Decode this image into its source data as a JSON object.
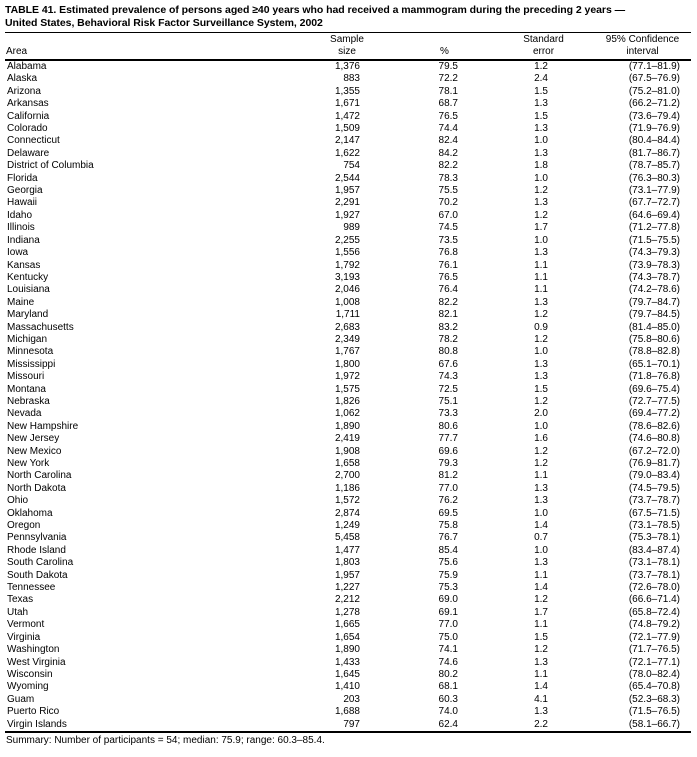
{
  "title": {
    "line1": "TABLE 41. Estimated prevalence of persons aged ≥40 years who had received a mammogram during the preceding 2 years —",
    "line2": "United States, Behavioral Risk Factor Surveillance System, 2002"
  },
  "columns": {
    "area": "Area",
    "sample_line1": "Sample",
    "sample_line2": "size",
    "percent": "%",
    "se_line1": "Standard",
    "se_line2": "error",
    "ci_line1": "95% Confidence",
    "ci_line2": "interval"
  },
  "rows": [
    {
      "area": "Alabama",
      "sample": "1,376",
      "percent": "79.5",
      "se": "1.2",
      "ci": "(77.1–81.9)"
    },
    {
      "area": "Alaska",
      "sample": "883",
      "percent": "72.2",
      "se": "2.4",
      "ci": "(67.5–76.9)"
    },
    {
      "area": "Arizona",
      "sample": "1,355",
      "percent": "78.1",
      "se": "1.5",
      "ci": "(75.2–81.0)"
    },
    {
      "area": "Arkansas",
      "sample": "1,671",
      "percent": "68.7",
      "se": "1.3",
      "ci": "(66.2–71.2)"
    },
    {
      "area": "California",
      "sample": "1,472",
      "percent": "76.5",
      "se": "1.5",
      "ci": "(73.6–79.4)"
    },
    {
      "area": "Colorado",
      "sample": "1,509",
      "percent": "74.4",
      "se": "1.3",
      "ci": "(71.9–76.9)"
    },
    {
      "area": "Connecticut",
      "sample": "2,147",
      "percent": "82.4",
      "se": "1.0",
      "ci": "(80.4–84.4)"
    },
    {
      "area": "Delaware",
      "sample": "1,622",
      "percent": "84.2",
      "se": "1.3",
      "ci": "(81.7–86.7)"
    },
    {
      "area": "District of Columbia",
      "sample": "754",
      "percent": "82.2",
      "se": "1.8",
      "ci": "(78.7–85.7)"
    },
    {
      "area": "Florida",
      "sample": "2,544",
      "percent": "78.3",
      "se": "1.0",
      "ci": "(76.3–80.3)"
    },
    {
      "area": "Georgia",
      "sample": "1,957",
      "percent": "75.5",
      "se": "1.2",
      "ci": "(73.1–77.9)"
    },
    {
      "area": "Hawaii",
      "sample": "2,291",
      "percent": "70.2",
      "se": "1.3",
      "ci": "(67.7–72.7)"
    },
    {
      "area": "Idaho",
      "sample": "1,927",
      "percent": "67.0",
      "se": "1.2",
      "ci": "(64.6–69.4)"
    },
    {
      "area": "Illinois",
      "sample": "989",
      "percent": "74.5",
      "se": "1.7",
      "ci": "(71.2–77.8)"
    },
    {
      "area": "Indiana",
      "sample": "2,255",
      "percent": "73.5",
      "se": "1.0",
      "ci": "(71.5–75.5)"
    },
    {
      "area": "Iowa",
      "sample": "1,556",
      "percent": "76.8",
      "se": "1.3",
      "ci": "(74.3–79.3)"
    },
    {
      "area": "Kansas",
      "sample": "1,792",
      "percent": "76.1",
      "se": "1.1",
      "ci": "(73.9–78.3)"
    },
    {
      "area": "Kentucky",
      "sample": "3,193",
      "percent": "76.5",
      "se": "1.1",
      "ci": "(74.3–78.7)"
    },
    {
      "area": "Louisiana",
      "sample": "2,046",
      "percent": "76.4",
      "se": "1.1",
      "ci": "(74.2–78.6)"
    },
    {
      "area": "Maine",
      "sample": "1,008",
      "percent": "82.2",
      "se": "1.3",
      "ci": "(79.7–84.7)"
    },
    {
      "area": "Maryland",
      "sample": "1,711",
      "percent": "82.1",
      "se": "1.2",
      "ci": "(79.7–84.5)"
    },
    {
      "area": "Massachusetts",
      "sample": "2,683",
      "percent": "83.2",
      "se": "0.9",
      "ci": "(81.4–85.0)"
    },
    {
      "area": "Michigan",
      "sample": "2,349",
      "percent": "78.2",
      "se": "1.2",
      "ci": "(75.8–80.6)"
    },
    {
      "area": "Minnesota",
      "sample": "1,767",
      "percent": "80.8",
      "se": "1.0",
      "ci": "(78.8–82.8)"
    },
    {
      "area": "Mississippi",
      "sample": "1,800",
      "percent": "67.6",
      "se": "1.3",
      "ci": "(65.1–70.1)"
    },
    {
      "area": "Missouri",
      "sample": "1,972",
      "percent": "74.3",
      "se": "1.3",
      "ci": "(71.8–76.8)"
    },
    {
      "area": "Montana",
      "sample": "1,575",
      "percent": "72.5",
      "se": "1.5",
      "ci": "(69.6–75.4)"
    },
    {
      "area": "Nebraska",
      "sample": "1,826",
      "percent": "75.1",
      "se": "1.2",
      "ci": "(72.7–77.5)"
    },
    {
      "area": "Nevada",
      "sample": "1,062",
      "percent": "73.3",
      "se": "2.0",
      "ci": "(69.4–77.2)"
    },
    {
      "area": "New Hampshire",
      "sample": "1,890",
      "percent": "80.6",
      "se": "1.0",
      "ci": "(78.6–82.6)"
    },
    {
      "area": "New Jersey",
      "sample": "2,419",
      "percent": "77.7",
      "se": "1.6",
      "ci": "(74.6–80.8)"
    },
    {
      "area": "New Mexico",
      "sample": "1,908",
      "percent": "69.6",
      "se": "1.2",
      "ci": "(67.2–72.0)"
    },
    {
      "area": "New York",
      "sample": "1,658",
      "percent": "79.3",
      "se": "1.2",
      "ci": "(76.9–81.7)"
    },
    {
      "area": "North Carolina",
      "sample": "2,700",
      "percent": "81.2",
      "se": "1.1",
      "ci": "(79.0–83.4)"
    },
    {
      "area": "North Dakota",
      "sample": "1,186",
      "percent": "77.0",
      "se": "1.3",
      "ci": "(74.5–79.5)"
    },
    {
      "area": "Ohio",
      "sample": "1,572",
      "percent": "76.2",
      "se": "1.3",
      "ci": "(73.7–78.7)"
    },
    {
      "area": "Oklahoma",
      "sample": "2,874",
      "percent": "69.5",
      "se": "1.0",
      "ci": "(67.5–71.5)"
    },
    {
      "area": "Oregon",
      "sample": "1,249",
      "percent": "75.8",
      "se": "1.4",
      "ci": "(73.1–78.5)"
    },
    {
      "area": "Pennsylvania",
      "sample": "5,458",
      "percent": "76.7",
      "se": "0.7",
      "ci": "(75.3–78.1)"
    },
    {
      "area": "Rhode Island",
      "sample": "1,477",
      "percent": "85.4",
      "se": "1.0",
      "ci": "(83.4–87.4)"
    },
    {
      "area": "South Carolina",
      "sample": "1,803",
      "percent": "75.6",
      "se": "1.3",
      "ci": "(73.1–78.1)"
    },
    {
      "area": "South Dakota",
      "sample": "1,957",
      "percent": "75.9",
      "se": "1.1",
      "ci": "(73.7–78.1)"
    },
    {
      "area": "Tennessee",
      "sample": "1,227",
      "percent": "75.3",
      "se": "1.4",
      "ci": "(72.6–78.0)"
    },
    {
      "area": "Texas",
      "sample": "2,212",
      "percent": "69.0",
      "se": "1.2",
      "ci": "(66.6–71.4)"
    },
    {
      "area": "Utah",
      "sample": "1,278",
      "percent": "69.1",
      "se": "1.7",
      "ci": "(65.8–72.4)"
    },
    {
      "area": "Vermont",
      "sample": "1,665",
      "percent": "77.0",
      "se": "1.1",
      "ci": "(74.8–79.2)"
    },
    {
      "area": "Virginia",
      "sample": "1,654",
      "percent": "75.0",
      "se": "1.5",
      "ci": "(72.1–77.9)"
    },
    {
      "area": "Washington",
      "sample": "1,890",
      "percent": "74.1",
      "se": "1.2",
      "ci": "(71.7–76.5)"
    },
    {
      "area": "West Virginia",
      "sample": "1,433",
      "percent": "74.6",
      "se": "1.3",
      "ci": "(72.1–77.1)"
    },
    {
      "area": "Wisconsin",
      "sample": "1,645",
      "percent": "80.2",
      "se": "1.1",
      "ci": "(78.0–82.4)"
    },
    {
      "area": "Wyoming",
      "sample": "1,410",
      "percent": "68.1",
      "se": "1.4",
      "ci": "(65.4–70.8)"
    },
    {
      "area": "Guam",
      "sample": "203",
      "percent": "60.3",
      "se": "4.1",
      "ci": "(52.3–68.3)"
    },
    {
      "area": "Puerto Rico",
      "sample": "1,688",
      "percent": "74.0",
      "se": "1.3",
      "ci": "(71.5–76.5)"
    },
    {
      "area": "Virgin Islands",
      "sample": "797",
      "percent": "62.4",
      "se": "2.2",
      "ci": "(58.1–66.7)"
    }
  ],
  "summary": "Summary: Number of participants = 54; median: 75.9; range: 60.3–85.4."
}
